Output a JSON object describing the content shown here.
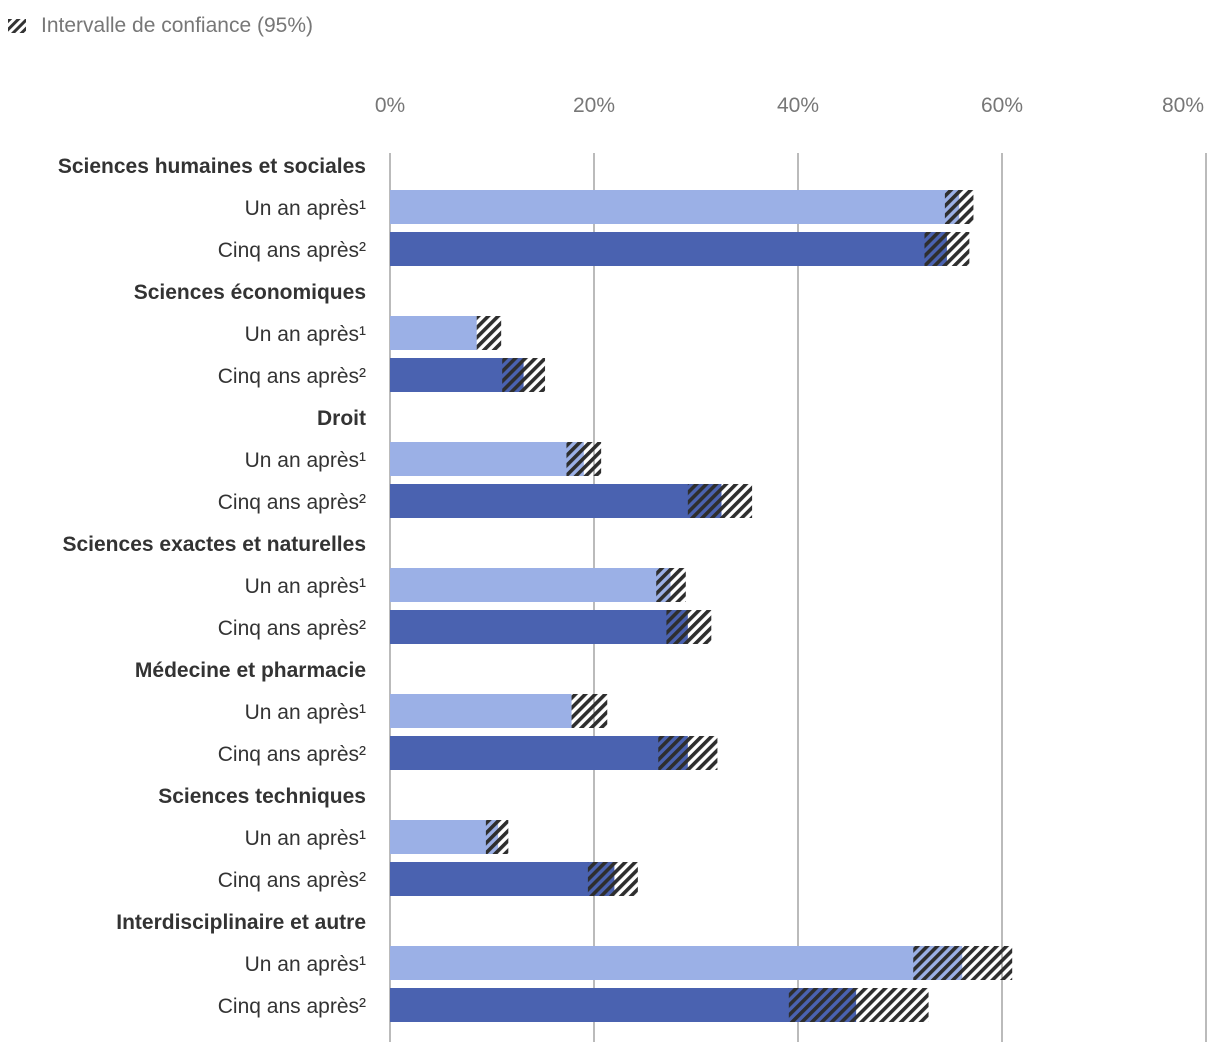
{
  "chart_data": {
    "type": "bar",
    "orientation": "horizontal",
    "title": "",
    "xlabel": "",
    "ylabel": "",
    "xlim": [
      0,
      80
    ],
    "x_ticks": [
      0,
      20,
      40,
      60,
      80
    ],
    "tick_suffix": "%",
    "grid": true,
    "legend": [
      {
        "label": "Intervalle de confiance (95%)",
        "pattern": "hatched"
      }
    ],
    "series_colors": {
      "Un an après¹": "#9bb0e6",
      "Cinq ans après²": "#4a62b0"
    },
    "groups": [
      {
        "name": "Sciences humaines et sociales",
        "rows": [
          {
            "label": "Un an après¹",
            "value": 55.8,
            "ci": [
              54.4,
              57.2
            ]
          },
          {
            "label": "Cinq ans après²",
            "value": 54.6,
            "ci": [
              52.4,
              56.8
            ]
          }
        ]
      },
      {
        "name": "Sciences économiques",
        "rows": [
          {
            "label": "Un an après¹",
            "value": 8.5,
            "ci": [
              8.5,
              10.9
            ]
          },
          {
            "label": "Cinq ans après²",
            "value": 13.1,
            "ci": [
              11.0,
              15.2
            ]
          }
        ]
      },
      {
        "name": "Droit",
        "rows": [
          {
            "label": "Un an après¹",
            "value": 19.0,
            "ci": [
              17.3,
              20.7
            ]
          },
          {
            "label": "Cinq ans après²",
            "value": 32.5,
            "ci": [
              29.2,
              35.5
            ]
          }
        ]
      },
      {
        "name": "Sciences exactes et naturelles",
        "rows": [
          {
            "label": "Un an après¹",
            "value": 27.5,
            "ci": [
              26.1,
              29.0
            ]
          },
          {
            "label": "Cinq ans après²",
            "value": 29.2,
            "ci": [
              27.1,
              31.5
            ]
          }
        ]
      },
      {
        "name": "Médecine et pharmacie",
        "rows": [
          {
            "label": "Un an après¹",
            "value": 17.8,
            "ci": [
              17.8,
              21.3
            ]
          },
          {
            "label": "Cinq ans après²",
            "value": 29.2,
            "ci": [
              26.3,
              32.1
            ]
          }
        ]
      },
      {
        "name": "Sciences techniques",
        "rows": [
          {
            "label": "Un an après¹",
            "value": 10.6,
            "ci": [
              9.4,
              11.6
            ]
          },
          {
            "label": "Cinq ans après²",
            "value": 22.0,
            "ci": [
              19.4,
              24.3
            ]
          }
        ]
      },
      {
        "name": "Interdisciplinaire et autre",
        "rows": [
          {
            "label": "Un an après¹",
            "value": 56.1,
            "ci": [
              51.3,
              61.0
            ]
          },
          {
            "label": "Cinq ans après²",
            "value": 45.7,
            "ci": [
              39.1,
              52.8
            ]
          }
        ]
      }
    ]
  }
}
